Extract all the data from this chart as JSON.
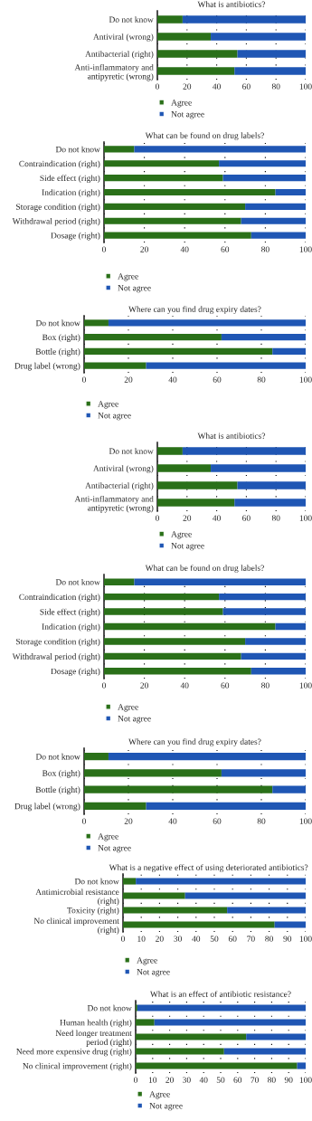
{
  "chart_data": [
    {
      "type": "bar",
      "orientation": "horizontal",
      "stacked": true,
      "title": "What is antibiotics?",
      "categories": [
        "Do not know",
        "Antiviral (wrong)",
        "Antibacterial (right)",
        "Anti-inflammatory and\nantipyretic (wrong)"
      ],
      "series": [
        {
          "name": "Agree",
          "color": "#2a7019",
          "values": [
            17,
            36,
            54,
            52
          ]
        },
        {
          "name": "Not agree",
          "color": "#1f56b4",
          "values": [
            83,
            64,
            46,
            48
          ]
        }
      ],
      "xlim": [
        0,
        100
      ],
      "xticks": [
        0,
        20,
        40,
        60,
        80,
        100
      ],
      "grid": "x",
      "legend": "bottom"
    },
    {
      "type": "bar",
      "orientation": "horizontal",
      "stacked": true,
      "title": "What can be found on drug labels?",
      "categories": [
        "Do not know",
        "Contraindication (right)",
        "Side effect (right)",
        "Indication (right)",
        "Storage condition (right)",
        "Withdrawal period (right)",
        "Dosage (right)"
      ],
      "series": [
        {
          "name": "Agree",
          "color": "#2a7019",
          "values": [
            15,
            57,
            59,
            85,
            70,
            68,
            73
          ]
        },
        {
          "name": "Not agree",
          "color": "#1f56b4",
          "values": [
            85,
            43,
            41,
            15,
            30,
            32,
            27
          ]
        }
      ],
      "xlim": [
        0,
        100
      ],
      "xticks": [
        0,
        20,
        40,
        60,
        80,
        100
      ],
      "grid": "x",
      "legend": "bottom"
    },
    {
      "type": "bar",
      "orientation": "horizontal",
      "stacked": true,
      "title": "Where can you find drug expiry dates?",
      "categories": [
        "Do not know",
        "Box (right)",
        "Bottle (right)",
        "Drug label (wrong)"
      ],
      "series": [
        {
          "name": "Agree",
          "color": "#2a7019",
          "values": [
            11,
            62,
            85,
            28
          ]
        },
        {
          "name": "Not agree",
          "color": "#1f56b4",
          "values": [
            89,
            38,
            15,
            72
          ]
        }
      ],
      "xlim": [
        0,
        100
      ],
      "xticks": [
        0,
        20,
        40,
        60,
        80,
        100
      ],
      "grid": "x",
      "legend": "bottom"
    },
    {
      "type": "bar",
      "orientation": "horizontal",
      "stacked": true,
      "title": "What is antibiotics?",
      "categories": [
        "Do not know",
        "Antiviral (wrong)",
        "Antibacterial (right)",
        "Anti-inflammatory and\nantipyretic (wrong)"
      ],
      "series": [
        {
          "name": "Agree",
          "color": "#2a7019",
          "values": [
            17,
            36,
            54,
            52
          ]
        },
        {
          "name": "Not agree",
          "color": "#1f56b4",
          "values": [
            83,
            64,
            46,
            48
          ]
        }
      ],
      "xlim": [
        0,
        100
      ],
      "xticks": [
        0,
        20,
        40,
        60,
        80,
        100
      ],
      "grid": "x",
      "legend": "bottom"
    },
    {
      "type": "bar",
      "orientation": "horizontal",
      "stacked": true,
      "title": "What can be found on drug labels?",
      "categories": [
        "Do not know",
        "Contraindication (right)",
        "Side effect (right)",
        "Indication (right)",
        "Storage condition (right)",
        "Withdrawal period (right)",
        "Dosage (right)"
      ],
      "series": [
        {
          "name": "Agree",
          "color": "#2a7019",
          "values": [
            15,
            57,
            59,
            85,
            70,
            68,
            73
          ]
        },
        {
          "name": "Not agree",
          "color": "#1f56b4",
          "values": [
            85,
            43,
            41,
            15,
            30,
            32,
            27
          ]
        }
      ],
      "xlim": [
        0,
        100
      ],
      "xticks": [
        0,
        20,
        40,
        60,
        80,
        100
      ],
      "grid": "x",
      "legend": "bottom"
    },
    {
      "type": "bar",
      "orientation": "horizontal",
      "stacked": true,
      "title": "Where can you find drug expiry dates?",
      "categories": [
        "Do not know",
        "Box (right)",
        "Bottle (right)",
        "Drug label (wrong)"
      ],
      "series": [
        {
          "name": "Agree",
          "color": "#2a7019",
          "values": [
            11,
            62,
            85,
            28
          ]
        },
        {
          "name": "Not agree",
          "color": "#1f56b4",
          "values": [
            89,
            38,
            15,
            72
          ]
        }
      ],
      "xlim": [
        0,
        100
      ],
      "xticks": [
        0,
        20,
        40,
        60,
        80,
        100
      ],
      "grid": "x",
      "legend": "bottom"
    },
    {
      "type": "bar",
      "orientation": "horizontal",
      "stacked": true,
      "title": "What is a negative effect of using deteriorated antibiotics?",
      "categories": [
        "Do not know",
        "Antimicrobial resistance\n(right)",
        "Toxicity (right)",
        "No clinical improvement\n(right)"
      ],
      "series": [
        {
          "name": "Agree",
          "color": "#2a7019",
          "values": [
            7,
            34,
            57,
            83
          ]
        },
        {
          "name": "Not agree",
          "color": "#1f56b4",
          "values": [
            93,
            66,
            43,
            17
          ]
        }
      ],
      "xlim": [
        0,
        100
      ],
      "xticks": [
        0,
        10,
        20,
        30,
        40,
        50,
        60,
        70,
        80,
        90,
        100
      ],
      "grid": "x",
      "legend": "bottom"
    },
    {
      "type": "bar",
      "orientation": "horizontal",
      "stacked": true,
      "title": "What is an effect of antibiotic resistance?",
      "categories": [
        "Do not know",
        "Human health (right)",
        "Need longer treatment\nperiod (right)",
        "Need more expensive drug (right)",
        "No clinical improvement (right)"
      ],
      "series": [
        {
          "name": "Agree",
          "color": "#2a7019",
          "values": [
            1,
            11,
            65,
            52,
            95
          ]
        },
        {
          "name": "Not agree",
          "color": "#1f56b4",
          "values": [
            99,
            89,
            35,
            48,
            5
          ]
        }
      ],
      "xlim": [
        0,
        100
      ],
      "xticks": [
        0,
        10,
        20,
        30,
        40,
        50,
        60,
        70,
        80,
        90,
        100
      ],
      "grid": "x",
      "legend": "bottom"
    }
  ]
}
